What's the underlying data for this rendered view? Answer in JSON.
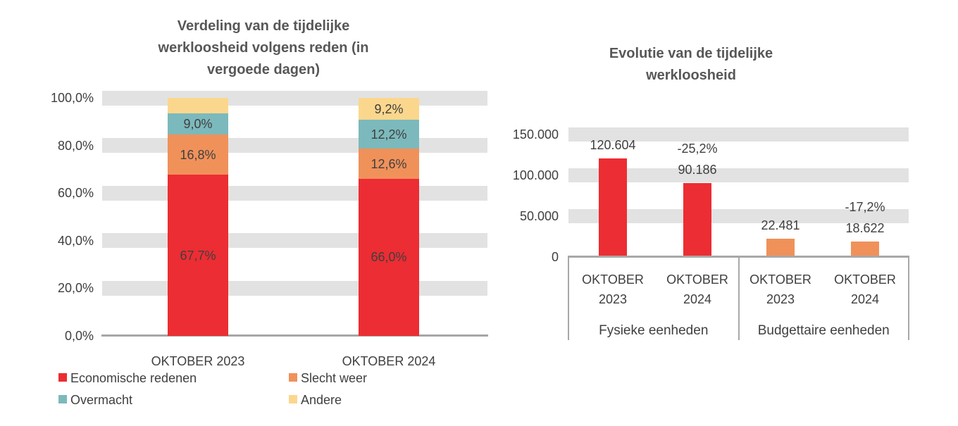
{
  "colors": {
    "red": "#EC2D33",
    "orange": "#F0915A",
    "teal": "#7CB9BC",
    "yellow": "#FBD78D",
    "band_gray": "#E2E2E2",
    "axis_gray": "#A6A6A6",
    "table_border_gray": "#A8A8A8",
    "label_text": "#3F3F3F",
    "title_text": "#575757"
  },
  "chart_data": [
    {
      "type": "bar",
      "subtype": "stacked-percent-column",
      "title": "Verdeling van de tijdelijke werkloosheid volgens reden (in vergoede dagen)",
      "title_lines": [
        "Verdeling van de tijdelijke",
        "werkloosheid volgens reden (in",
        "vergoede dagen)"
      ],
      "categories": [
        "OKTOBER 2023",
        "OKTOBER 2024"
      ],
      "series": [
        {
          "name": "Economische redenen",
          "color_key": "red",
          "values": [
            67.7,
            66.0
          ],
          "labels": [
            "67,7%",
            "66,0%"
          ]
        },
        {
          "name": "Slecht weer",
          "color_key": "orange",
          "values": [
            16.8,
            12.6
          ],
          "labels": [
            "16,8%",
            "12,6%"
          ]
        },
        {
          "name": "Overmacht",
          "color_key": "teal",
          "values": [
            9.0,
            12.2
          ],
          "labels": [
            "9,0%",
            "12,2%"
          ]
        },
        {
          "name": "Andere",
          "color_key": "yellow",
          "values": [
            6.5,
            9.2
          ],
          "labels": [
            null,
            "9,2%"
          ]
        }
      ],
      "ylim": [
        0,
        100
      ],
      "grid": "horizontal-gray-bands",
      "y_ticks": [
        {
          "label": "100,0%",
          "value": 100
        },
        {
          "label": "80,0%",
          "value": 80
        },
        {
          "label": "60,0%",
          "value": 60
        },
        {
          "label": "40,0%",
          "value": 40
        },
        {
          "label": "20,0%",
          "value": 20
        },
        {
          "label": "0,0%",
          "value": 0
        }
      ],
      "legend_position": "bottom",
      "legend": [
        {
          "label": "Economische redenen",
          "color_key": "red"
        },
        {
          "label": "Slecht weer",
          "color_key": "orange"
        },
        {
          "label": "Overmacht",
          "color_key": "teal"
        },
        {
          "label": "Andere",
          "color_key": "yellow"
        }
      ]
    },
    {
      "type": "bar",
      "subtype": "grouped-column",
      "title": "Evolutie van de tijdelijke werkloosheid",
      "title_lines": [
        "Evolutie van de tijdelijke",
        "werkloosheid"
      ],
      "groups": [
        {
          "label": "Fysieke eenheden",
          "categories": [
            "OKTOBER 2023",
            "OKTOBER 2024"
          ]
        },
        {
          "label": "Budgettaire eenheden",
          "categories": [
            "OKTOBER 2023",
            "OKTOBER 2024"
          ]
        }
      ],
      "category_lines": [
        [
          "OKTOBER",
          "2023"
        ],
        [
          "OKTOBER",
          "2024"
        ],
        [
          "OKTOBER",
          "2023"
        ],
        [
          "OKTOBER",
          "2024"
        ]
      ],
      "bars": [
        {
          "group": "Fysieke eenheden",
          "category": "OKTOBER 2023",
          "value": 120604,
          "label": "120.604",
          "change_label": null,
          "color_key": "red"
        },
        {
          "group": "Fysieke eenheden",
          "category": "OKTOBER 2024",
          "value": 90186,
          "label": "90.186",
          "change_label": "-25,2%",
          "color_key": "red"
        },
        {
          "group": "Budgettaire eenheden",
          "category": "OKTOBER 2023",
          "value": 22481,
          "label": "22.481",
          "change_label": null,
          "color_key": "orange"
        },
        {
          "group": "Budgettaire eenheden",
          "category": "OKTOBER 2024",
          "value": 18622,
          "label": "18.622",
          "change_label": "-17,2%",
          "color_key": "orange"
        }
      ],
      "ylim": [
        0,
        150000
      ],
      "grid": "horizontal-gray-bands",
      "y_ticks": [
        {
          "label": "150.000",
          "value": 150000
        },
        {
          "label": "100.000",
          "value": 100000
        },
        {
          "label": "50.000",
          "value": 50000
        },
        {
          "label": "0",
          "value": 0
        }
      ],
      "legend_position": "none"
    }
  ]
}
